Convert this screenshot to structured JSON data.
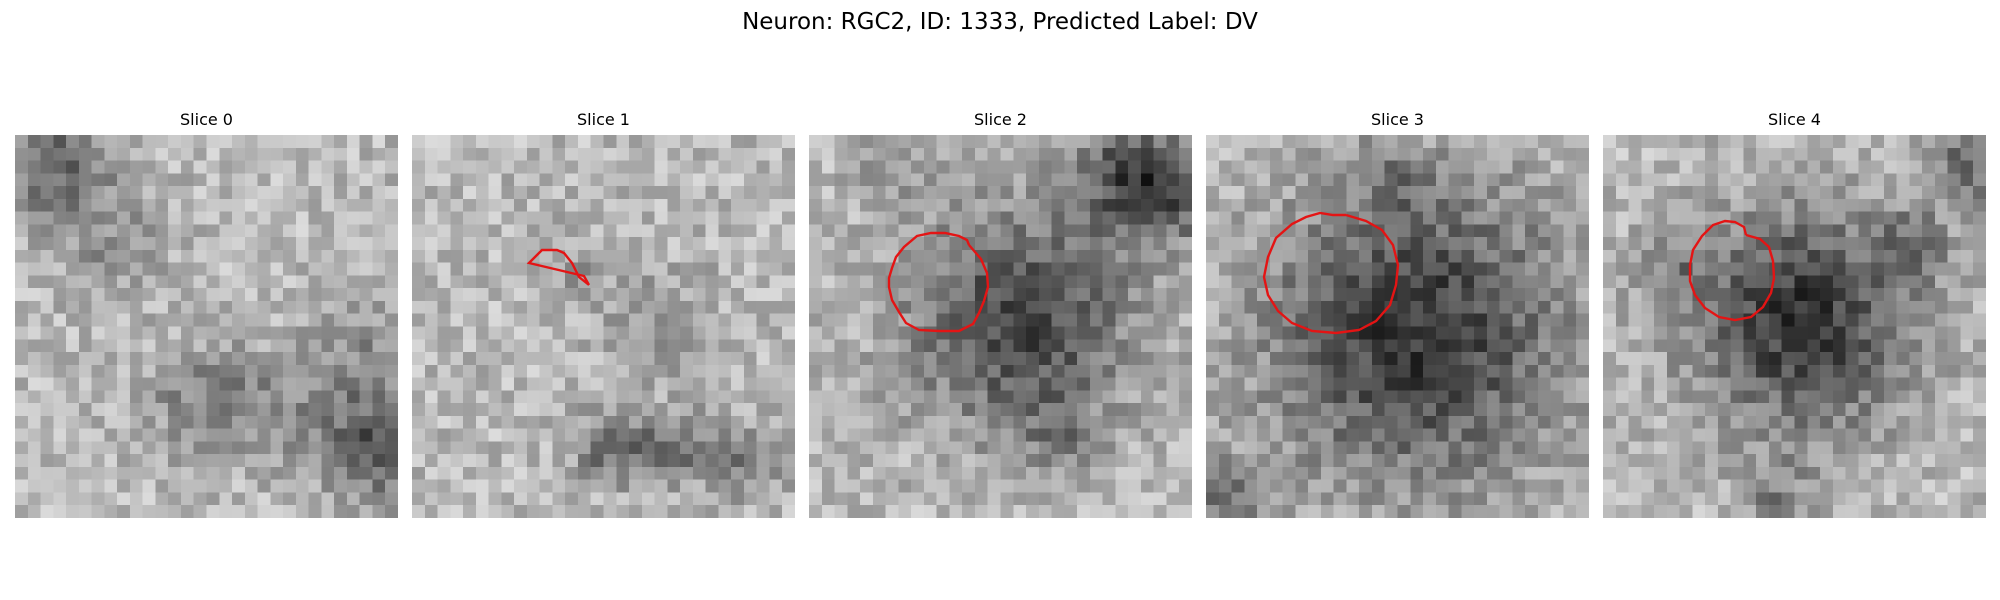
{
  "figure": {
    "title": "Neuron: RGC2, ID: 1333, Predicted Label: DV",
    "contour_color": "#e41414",
    "colormap": "gray"
  },
  "panels": [
    {
      "label": "Slice 0",
      "has_contour": false,
      "blobs": []
    },
    {
      "label": "Slice 1",
      "has_contour": true,
      "blobs": []
    },
    {
      "label": "Slice 2",
      "has_contour": true,
      "blobs": []
    },
    {
      "label": "Slice 3",
      "has_contour": true,
      "blobs": []
    },
    {
      "label": "Slice 4",
      "has_contour": true,
      "blobs": []
    }
  ]
}
